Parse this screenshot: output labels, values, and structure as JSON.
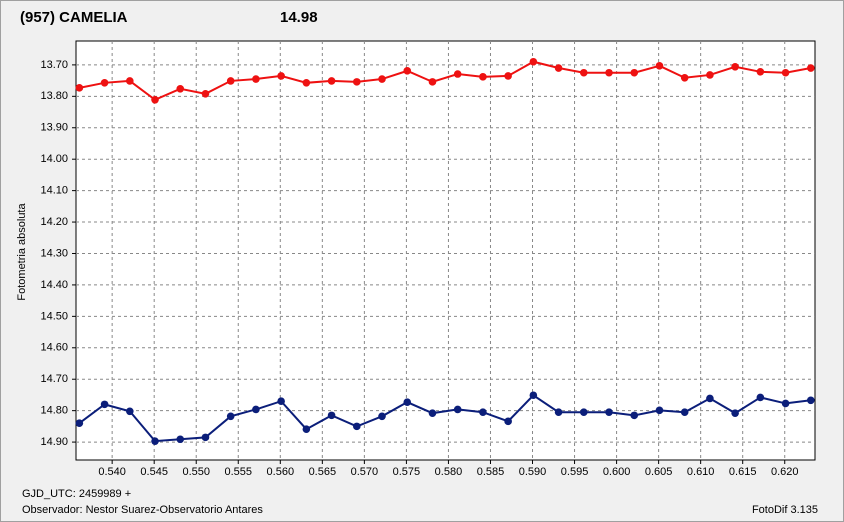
{
  "chart_data": {
    "type": "line",
    "title": "(957) CAMELIA",
    "subtitle": "14.98",
    "y_label": "Fotometria absoluta",
    "x_note": "GJD_UTC: 2459989 +",
    "observer": "Observador: Nestor Suarez-Observatorio Antares",
    "software": "FotoDif 3.135",
    "title_color": "#ee1111",
    "subtitle_color": "#0b1e7a",
    "grid": true,
    "y_inverted": true,
    "xlim": [
      0.5357,
      0.6236
    ],
    "ylim": [
      13.624,
      14.957
    ],
    "xticks": [
      {
        "value": 0.54,
        "label": "0.540"
      },
      {
        "value": 0.545,
        "label": "0.545"
      },
      {
        "value": 0.55,
        "label": "0.550"
      },
      {
        "value": 0.555,
        "label": "0.555"
      },
      {
        "value": 0.56,
        "label": "0.560"
      },
      {
        "value": 0.565,
        "label": "0.565"
      },
      {
        "value": 0.57,
        "label": "0.570"
      },
      {
        "value": 0.575,
        "label": "0.575"
      },
      {
        "value": 0.58,
        "label": "0.580"
      },
      {
        "value": 0.585,
        "label": "0.585"
      },
      {
        "value": 0.59,
        "label": "0.590"
      },
      {
        "value": 0.595,
        "label": "0.595"
      },
      {
        "value": 0.6,
        "label": "0.600"
      },
      {
        "value": 0.605,
        "label": "0.605"
      },
      {
        "value": 0.61,
        "label": "0.610"
      },
      {
        "value": 0.615,
        "label": "0.615"
      },
      {
        "value": 0.62,
        "label": "0.620"
      }
    ],
    "yticks": [
      {
        "value": 13.7,
        "label": "13.70"
      },
      {
        "value": 13.8,
        "label": "13.80"
      },
      {
        "value": 13.9,
        "label": "13.90"
      },
      {
        "value": 14.0,
        "label": "14.00"
      },
      {
        "value": 14.1,
        "label": "14.10"
      },
      {
        "value": 14.2,
        "label": "14.20"
      },
      {
        "value": 14.3,
        "label": "14.30"
      },
      {
        "value": 14.4,
        "label": "14.40"
      },
      {
        "value": 14.5,
        "label": "14.50"
      },
      {
        "value": 14.6,
        "label": "14.60"
      },
      {
        "value": 14.7,
        "label": "14.70"
      },
      {
        "value": 14.8,
        "label": "14.80"
      },
      {
        "value": 14.9,
        "label": "14.90"
      }
    ],
    "x": [
      0.5361,
      0.5391,
      0.5421,
      0.5451,
      0.5481,
      0.5511,
      0.5541,
      0.5571,
      0.5601,
      0.5631,
      0.5661,
      0.5691,
      0.5721,
      0.5751,
      0.5781,
      0.5811,
      0.5841,
      0.5871,
      0.5901,
      0.5931,
      0.5961,
      0.5991,
      0.6021,
      0.6051,
      0.6081,
      0.6111,
      0.6141,
      0.6171,
      0.6201,
      0.6231
    ],
    "series": [
      {
        "color": "#ee1111",
        "values": [
          13.773,
          13.757,
          13.751,
          13.811,
          13.776,
          13.792,
          13.751,
          13.745,
          13.735,
          13.757,
          13.751,
          13.754,
          13.745,
          13.719,
          13.754,
          13.729,
          13.738,
          13.735,
          13.69,
          13.71,
          13.725,
          13.725,
          13.725,
          13.703,
          13.741,
          13.732,
          13.706,
          13.722,
          13.725,
          13.71
        ]
      },
      {
        "color": "#0b1e7a",
        "values": [
          14.84,
          14.78,
          14.802,
          14.897,
          14.891,
          14.885,
          14.818,
          14.796,
          14.77,
          14.859,
          14.815,
          14.85,
          14.818,
          14.773,
          14.808,
          14.796,
          14.805,
          14.834,
          14.751,
          14.805,
          14.805,
          14.805,
          14.815,
          14.799,
          14.805,
          14.761,
          14.808,
          14.758,
          14.777,
          14.767
        ]
      }
    ]
  }
}
